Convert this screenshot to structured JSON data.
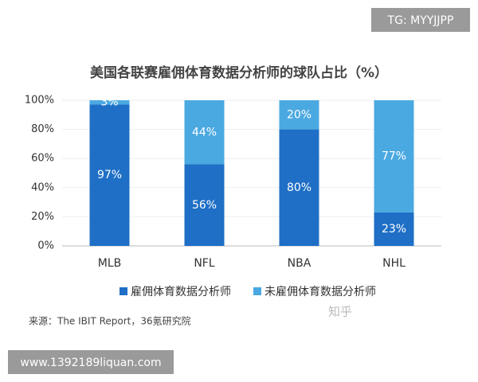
{
  "chart_data": {
    "type": "stacked_bar",
    "title": "美国各联赛雇佣体育数据分析师的球队占比（%）",
    "categories": [
      "MLB",
      "NFL",
      "NBA",
      "NHL"
    ],
    "series": [
      {
        "name": "雇佣体育数据分析师",
        "color": "#1f6fc6",
        "values": [
          97,
          56,
          80,
          23
        ],
        "value_labels": [
          "97%",
          "56%",
          "80%",
          "23%"
        ]
      },
      {
        "name": "未雇佣体育数据分析师",
        "color": "#4ba9e1",
        "values": [
          3,
          44,
          20,
          77
        ],
        "value_labels": [
          "3%",
          "44%",
          "20%",
          "77%"
        ]
      }
    ],
    "ylim": [
      0,
      100
    ],
    "yticks": [
      {
        "value": 0,
        "label": "0%"
      },
      {
        "value": 20,
        "label": "20%"
      },
      {
        "value": 40,
        "label": "40%"
      },
      {
        "value": 60,
        "label": "60%"
      },
      {
        "value": 80,
        "label": "80%"
      },
      {
        "value": 100,
        "label": "100%"
      }
    ],
    "grid": true,
    "legend": "bottom",
    "source": "来源：The IBIT Report，36氪研究院"
  },
  "watermarks": [
    "TG: MYYJJPP",
    "www.1392189liquan.com",
    "知乎"
  ]
}
